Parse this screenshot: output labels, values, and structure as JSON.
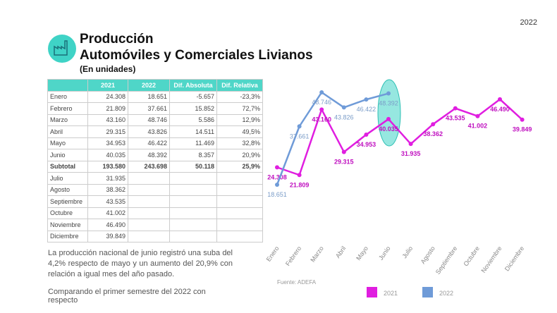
{
  "year": "2022",
  "header": {
    "title": "Producción",
    "subtitle": "Automóviles y Comerciales Livianos",
    "unit": "(En unidades)"
  },
  "table": {
    "columns": [
      "",
      "2021",
      "2022",
      "Dif. Absoluta",
      "Dif. Relativa"
    ],
    "rows": [
      [
        "Enero",
        "24.308",
        "18.651",
        "-5.657",
        "-23,3%"
      ],
      [
        "Febrero",
        "21.809",
        "37.661",
        "15.852",
        "72,7%"
      ],
      [
        "Marzo",
        "43.160",
        "48.746",
        "5.586",
        "12,9%"
      ],
      [
        "Abril",
        "29.315",
        "43.826",
        "14.511",
        "49,5%"
      ],
      [
        "Mayo",
        "34.953",
        "46.422",
        "11.469",
        "32,8%"
      ],
      [
        "Junio",
        "40.035",
        "48.392",
        "8.357",
        "20,9%"
      ],
      [
        "Subtotal",
        "193.580",
        "243.698",
        "50.118",
        "25,9%"
      ],
      [
        "Julio",
        "31.935"
      ],
      [
        "Agosto",
        "38.362"
      ],
      [
        "Septiembre",
        "43.535"
      ],
      [
        "Octubre",
        "41.002"
      ],
      [
        "Noviembre",
        "46.490"
      ],
      [
        "Diciembre",
        "39.849"
      ]
    ]
  },
  "text": [
    "La producción nacional de junio registró una suba del 4,2% respecto de mayo y un aumento del 20,9% con relación a igual mes del año pasado.",
    "Comparando el primer semestre del 2022 con respecto"
  ],
  "source": "Fuente: ADEFA",
  "chart_data": {
    "type": "line",
    "categories": [
      "Enero",
      "Febrero",
      "Marzo",
      "Abril",
      "Mayo",
      "Junio",
      "Julio",
      "Agosto",
      "Septiembre",
      "Octubre",
      "Noviembre",
      "Diciembre"
    ],
    "series": [
      {
        "name": "2021",
        "color": "#e01ee0",
        "values": [
          24308,
          21809,
          43160,
          29315,
          34953,
          40035,
          31935,
          38362,
          43535,
          41002,
          46490,
          39849
        ],
        "value_labels": [
          "24.308",
          "21.809",
          "43.160",
          "29.315",
          "34.953",
          "40.035",
          "31.935",
          "38.362",
          "43.535",
          "41.002",
          "46.490",
          "39.849"
        ]
      },
      {
        "name": "2022",
        "color": "#6f9bd8",
        "values": [
          18651,
          37661,
          48746,
          43826,
          46422,
          48392,
          null,
          null,
          null,
          null,
          null,
          null
        ],
        "value_labels": [
          "18.651",
          "37.661",
          "48.746",
          "43.826",
          "46.422",
          "48.392",
          null,
          null,
          null,
          null,
          null,
          null
        ]
      }
    ]
  }
}
